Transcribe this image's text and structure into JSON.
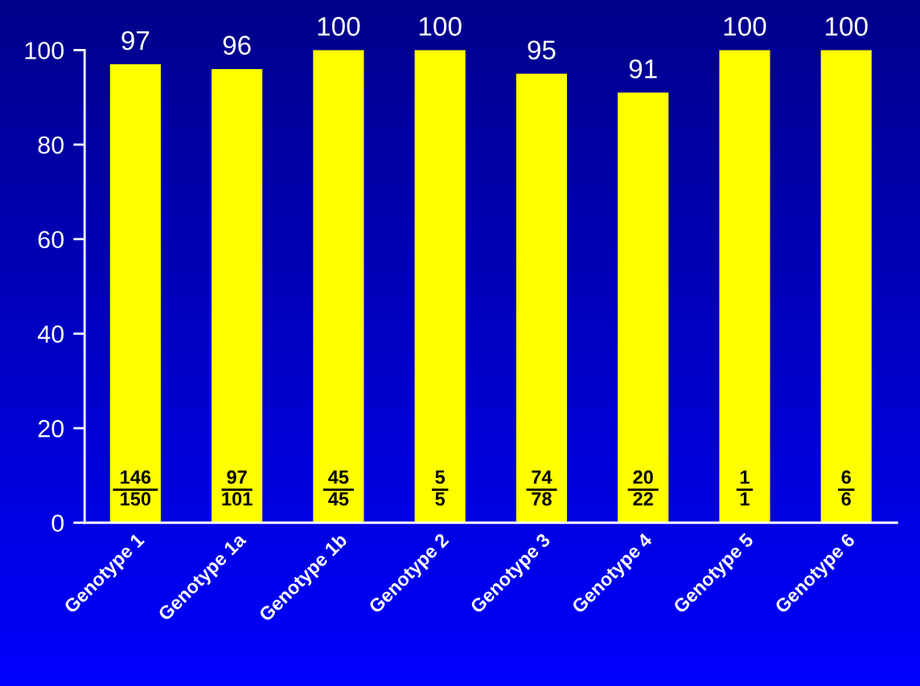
{
  "chart_data": {
    "type": "bar",
    "categories": [
      "Genotype 1",
      "Genotype 1a",
      "Genotype 1b",
      "Genotype 2",
      "Genotype 3",
      "Genotype 4",
      "Genotype 5",
      "Genotype 6"
    ],
    "values": [
      97,
      96,
      100,
      100,
      95,
      91,
      100,
      100
    ],
    "color": "#ffff00",
    "data_labels": true,
    "ylim": [
      0,
      100
    ],
    "yticks": [
      0,
      20,
      40,
      60,
      80,
      100
    ],
    "grid": false,
    "annotations": [
      "146\n150",
      "97\n101",
      "45\n45",
      "5\n5",
      "74\n78",
      "20\n22",
      "1\n1",
      "6\n6"
    ]
  }
}
